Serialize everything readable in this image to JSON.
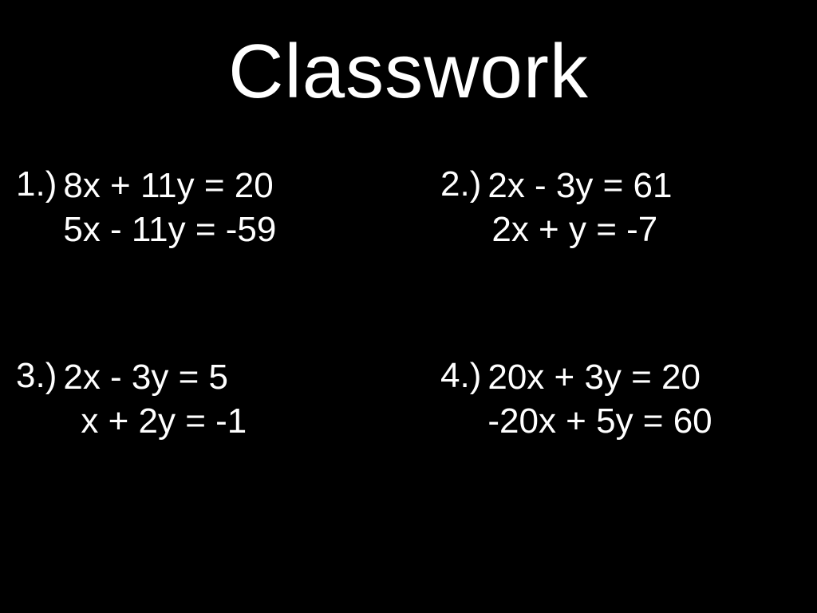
{
  "title": "Classwork",
  "background_color": "#000000",
  "text_color": "#ffffff",
  "title_fontsize": 96,
  "body_fontsize": 44,
  "problems": [
    {
      "number": "1.)",
      "eq1": "8x + 11y = 20",
      "eq2": "5x - 11y = -59"
    },
    {
      "number": "2.)",
      "eq1": "2x - 3y = 61",
      "eq2": "2x + y = -7"
    },
    {
      "number": "3.)",
      "eq1": "2x - 3y = 5",
      "eq2": "x + 2y = -1"
    },
    {
      "number": "4.)",
      "eq1": "20x + 3y = 20",
      "eq2": "-20x + 5y = 60"
    }
  ]
}
